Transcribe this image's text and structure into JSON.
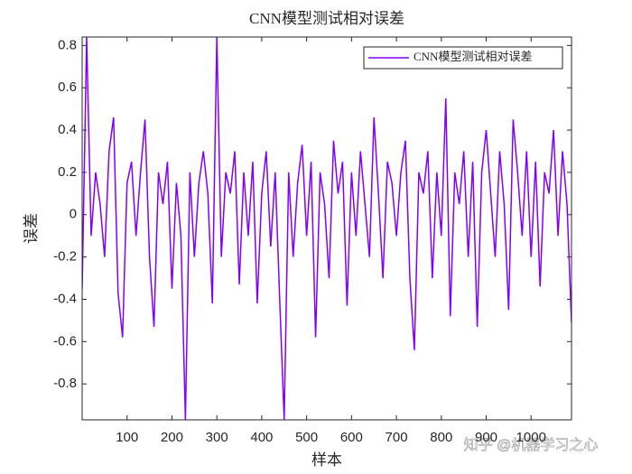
{
  "chart_data": {
    "type": "line",
    "title": "CNN模型测试相对误差",
    "xlabel": "样本",
    "ylabel": "误差",
    "annotation": "知乎 @机器学习之心",
    "x": [
      0,
      10,
      20,
      30,
      40,
      50,
      60,
      70,
      80,
      90,
      100,
      110,
      120,
      130,
      140,
      150,
      160,
      170,
      180,
      190,
      200,
      210,
      220,
      230,
      240,
      250,
      260,
      270,
      280,
      290,
      300,
      310,
      320,
      330,
      340,
      350,
      360,
      370,
      380,
      390,
      400,
      410,
      420,
      430,
      440,
      450,
      460,
      470,
      480,
      490,
      500,
      510,
      520,
      530,
      540,
      550,
      560,
      570,
      580,
      590,
      600,
      610,
      620,
      630,
      640,
      650,
      660,
      670,
      680,
      690,
      700,
      710,
      720,
      730,
      740,
      750,
      760,
      770,
      780,
      790,
      800,
      810,
      820,
      830,
      840,
      850,
      860,
      870,
      880,
      890,
      900,
      910,
      920,
      930,
      940,
      950,
      960,
      970,
      980,
      990,
      1000,
      1010,
      1020,
      1030,
      1040,
      1050,
      1060,
      1070,
      1080,
      1090
    ],
    "series": [
      {
        "name": "CNN模型测试相对误差",
        "color": "#8000ff",
        "values": [
          -0.35,
          0.84,
          -0.1,
          0.2,
          0.05,
          -0.2,
          0.3,
          0.46,
          -0.37,
          -0.58,
          0.15,
          0.25,
          -0.1,
          0.2,
          0.45,
          -0.2,
          -0.53,
          0.2,
          0.05,
          0.25,
          -0.35,
          0.15,
          -0.1,
          -0.97,
          0.2,
          -0.2,
          0.15,
          0.3,
          0.1,
          -0.42,
          0.84,
          -0.2,
          0.2,
          0.1,
          0.3,
          -0.33,
          0.2,
          -0.1,
          0.25,
          -0.42,
          0.1,
          0.3,
          -0.15,
          0.2,
          -0.4,
          -0.97,
          0.2,
          -0.2,
          0.15,
          0.33,
          -0.1,
          0.25,
          -0.58,
          0.2,
          0.05,
          -0.3,
          0.35,
          0.1,
          0.25,
          -0.43,
          0.2,
          -0.1,
          0.3,
          0.05,
          -0.2,
          0.46,
          0.1,
          -0.3,
          0.25,
          0.15,
          -0.1,
          0.2,
          0.35,
          -0.3,
          -0.64,
          0.2,
          0.1,
          0.3,
          -0.3,
          0.2,
          -0.1,
          0.55,
          -0.48,
          0.2,
          0.05,
          0.3,
          -0.2,
          0.25,
          -0.53,
          0.2,
          0.4,
          0.1,
          -0.2,
          0.3,
          0.05,
          -0.45,
          0.45,
          0.2,
          -0.1,
          0.3,
          -0.2,
          0.25,
          -0.34,
          0.2,
          0.1,
          0.4,
          -0.1,
          0.3,
          0.05,
          -0.51
        ]
      }
    ],
    "xlim": [
      0,
      1090
    ],
    "ylim": [
      -0.97,
      0.84
    ],
    "xticks": [
      100,
      200,
      300,
      400,
      500,
      600,
      700,
      800,
      900,
      1000
    ],
    "yticks": [
      -0.8,
      -0.6,
      -0.4,
      -0.2,
      0,
      0.2,
      0.4,
      0.6,
      0.8
    ],
    "legend": "top-right",
    "grid": false
  }
}
